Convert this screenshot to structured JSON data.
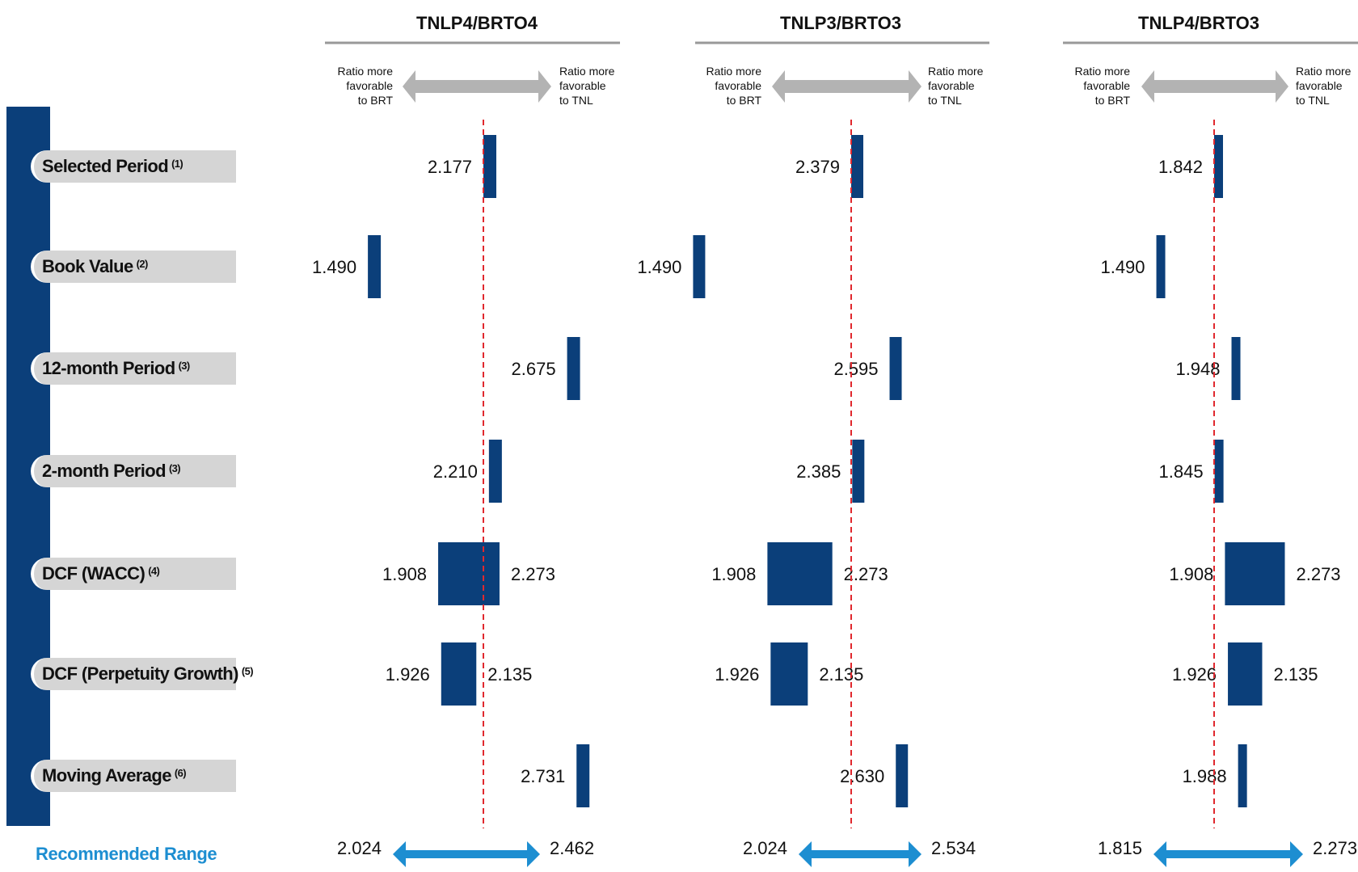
{
  "colors": {
    "bar": "#0b3f7a",
    "refline": "#e0282e",
    "range_arrow": "#1d8ed1",
    "gray_arrow": "#b3b3b3",
    "label_bg": "#d5d5d5"
  },
  "rows": [
    {
      "label": "Selected Period",
      "note": "(1)"
    },
    {
      "label": "Book Value",
      "note": "(2)"
    },
    {
      "label": "12-month Period",
      "note": "(3)"
    },
    {
      "label": "2-month Period",
      "note": "(3)"
    },
    {
      "label": "DCF (WACC)",
      "note": "(4)"
    },
    {
      "label": "DCF (Perpetuity Growth)",
      "note": "(5)"
    },
    {
      "label": "Moving Average",
      "note": "(6)"
    }
  ],
  "recommended_label": "Recommended Range",
  "direction_labels": {
    "left": [
      "Ratio more",
      "favorable",
      "to BRT"
    ],
    "right": [
      "Ratio more",
      "favorable",
      "to TNL"
    ]
  },
  "chart_data": [
    {
      "type": "bar",
      "title": "TNLP4/BRTO4",
      "categories": [
        "Selected Period",
        "Book Value",
        "12-month Period",
        "2-month Period",
        "DCF (WACC)",
        "DCF (Perpetuity Growth)",
        "Moving Average"
      ],
      "ranges": [
        [
          2.177,
          2.177
        ],
        [
          1.49,
          1.49
        ],
        [
          2.675,
          2.675
        ],
        [
          2.21,
          2.21
        ],
        [
          1.908,
          2.273
        ],
        [
          1.926,
          2.135
        ],
        [
          2.731,
          2.731
        ]
      ],
      "value_labels": [
        [
          "2.177"
        ],
        [
          "1.490"
        ],
        [
          "2.675"
        ],
        [
          "2.210"
        ],
        [
          "1.908",
          "2.273"
        ],
        [
          "1.926",
          "2.135"
        ],
        [
          "2.731"
        ]
      ],
      "reference_value": 2.177,
      "recommended_range": [
        2.024,
        2.462
      ],
      "recommended_labels": [
        "2.024",
        "2.462"
      ]
    },
    {
      "type": "bar",
      "title": "TNLP3/BRTO3",
      "categories": [
        "Selected Period",
        "Book Value",
        "12-month Period",
        "2-month Period",
        "DCF (WACC)",
        "DCF (Perpetuity Growth)",
        "Moving Average"
      ],
      "ranges": [
        [
          2.379,
          2.379
        ],
        [
          1.49,
          1.49
        ],
        [
          2.595,
          2.595
        ],
        [
          2.385,
          2.385
        ],
        [
          1.908,
          2.273
        ],
        [
          1.926,
          2.135
        ],
        [
          2.63,
          2.63
        ]
      ],
      "value_labels": [
        [
          "2.379"
        ],
        [
          "1.490"
        ],
        [
          "2.595"
        ],
        [
          "2.385"
        ],
        [
          "1.908",
          "2.273"
        ],
        [
          "1.926",
          "2.135"
        ],
        [
          "2.630"
        ]
      ],
      "reference_value": 2.379,
      "recommended_range": [
        2.024,
        2.534
      ],
      "recommended_labels": [
        "2.024",
        "2.534"
      ]
    },
    {
      "type": "bar",
      "title": "TNLP4/BRTO3",
      "categories": [
        "Selected Period",
        "Book Value",
        "12-month Period",
        "2-month Period",
        "DCF (WACC)",
        "DCF (Perpetuity Growth)",
        "Moving Average"
      ],
      "ranges": [
        [
          1.842,
          1.842
        ],
        [
          1.49,
          1.49
        ],
        [
          1.948,
          1.948
        ],
        [
          1.845,
          1.845
        ],
        [
          1.908,
          2.273
        ],
        [
          1.926,
          2.135
        ],
        [
          1.988,
          1.988
        ]
      ],
      "value_labels": [
        [
          "1.842"
        ],
        [
          "1.490"
        ],
        [
          "1.948"
        ],
        [
          "1.845"
        ],
        [
          "1.908",
          "2.273"
        ],
        [
          "1.926",
          "2.135"
        ],
        [
          "1.988"
        ]
      ],
      "reference_value": 1.842,
      "recommended_range": [
        1.815,
        2.273
      ],
      "recommended_labels": [
        "1.815",
        "2.273"
      ]
    }
  ]
}
